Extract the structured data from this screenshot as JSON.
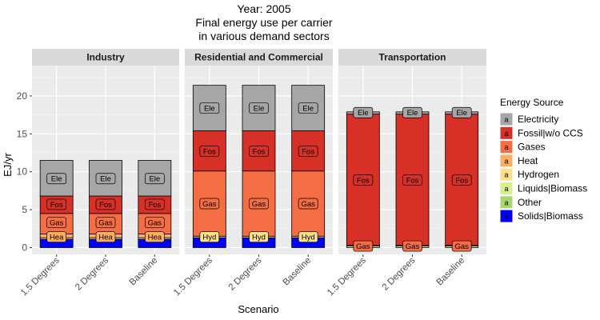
{
  "chart_data": {
    "type": "bar",
    "stacked": true,
    "title_lines": [
      "Year: 2005",
      "Final energy use per carrier",
      "in various demand sectors"
    ],
    "xlabel": "Scenario",
    "ylabel": "EJ/yr",
    "ylim": [
      -0.9,
      24
    ],
    "yticks": [
      0,
      5,
      10,
      15,
      20
    ],
    "grid": true,
    "legend_position": "right",
    "legend_title": "Energy Source",
    "categories": [
      "1.5 Degrees",
      "2 Degrees",
      "Baseline"
    ],
    "carriers": [
      {
        "name": "Electricity",
        "color": "#a6a6a6"
      },
      {
        "name": "Fossil|w/o CCS",
        "color": "#d73027"
      },
      {
        "name": "Gases",
        "color": "#f46d43"
      },
      {
        "name": "Heat",
        "color": "#fdae61"
      },
      {
        "name": "Hydrogen",
        "color": "#fee08b"
      },
      {
        "name": "Liquids|Biomass",
        "color": "#d9ef8b"
      },
      {
        "name": "Other",
        "color": "#a6d96a"
      },
      {
        "name": "Solids|Biomass",
        "color": "#0000ff"
      }
    ],
    "stack_order_bottom_to_top": [
      "Solids|Biomass",
      "Other",
      "Liquids|Biomass",
      "Hydrogen",
      "Heat",
      "Gases",
      "Fossil|w/o CCS",
      "Electricity"
    ],
    "facets": [
      {
        "name": "Industry",
        "series": [
          {
            "name": "Solids|Biomass",
            "values": [
              1.1,
              1.1,
              1.1
            ]
          },
          {
            "name": "Other",
            "values": [
              0,
              0,
              0
            ]
          },
          {
            "name": "Liquids|Biomass",
            "values": [
              0,
              0,
              0
            ]
          },
          {
            "name": "Hydrogen",
            "values": [
              0.2,
              0.2,
              0.2
            ]
          },
          {
            "name": "Heat",
            "values": [
              0.5,
              0.5,
              0.5
            ]
          },
          {
            "name": "Gases",
            "values": [
              2.7,
              2.7,
              2.7
            ]
          },
          {
            "name": "Fossil|w/o CCS",
            "values": [
              2.3,
              2.3,
              2.3
            ]
          },
          {
            "name": "Electricity",
            "values": [
              4.7,
              4.7,
              4.7
            ]
          }
        ],
        "labels": [
          {
            "text": "Hea",
            "carrier": "Heat",
            "y": 1.4
          },
          {
            "text": "Gas",
            "carrier": "Gases",
            "y": 3.3
          },
          {
            "text": "Fos",
            "carrier": "Fossil|w/o CCS",
            "y": 5.7
          },
          {
            "text": "Ele",
            "carrier": "Electricity",
            "y": 9.1
          }
        ]
      },
      {
        "name": "Residential and Commercial",
        "series": [
          {
            "name": "Solids|Biomass",
            "values": [
              1.3,
              1.3,
              1.3
            ]
          },
          {
            "name": "Other",
            "values": [
              0,
              0,
              0
            ]
          },
          {
            "name": "Liquids|Biomass",
            "values": [
              0,
              0,
              0
            ]
          },
          {
            "name": "Hydrogen",
            "values": [
              0.2,
              0.2,
              0.2
            ]
          },
          {
            "name": "Heat",
            "values": [
              0,
              0,
              0
            ]
          },
          {
            "name": "Gases",
            "values": [
              8.6,
              8.6,
              8.6
            ]
          },
          {
            "name": "Fossil|w/o CCS",
            "values": [
              5.3,
              5.3,
              5.3
            ]
          },
          {
            "name": "Electricity",
            "values": [
              6.0,
              6.0,
              6.0
            ]
          }
        ],
        "labels": [
          {
            "text": "Hyd",
            "carrier": "Hydrogen",
            "y": 1.4
          },
          {
            "text": "Gas",
            "carrier": "Gases",
            "y": 5.8
          },
          {
            "text": "Fos",
            "carrier": "Fossil|w/o CCS",
            "y": 12.7
          },
          {
            "text": "Ele",
            "carrier": "Electricity",
            "y": 18.4
          }
        ]
      },
      {
        "name": "Transportation",
        "series": [
          {
            "name": "Solids|Biomass",
            "values": [
              0,
              0,
              0
            ]
          },
          {
            "name": "Other",
            "values": [
              0,
              0,
              0
            ]
          },
          {
            "name": "Liquids|Biomass",
            "values": [
              0.2,
              0.2,
              0.2
            ]
          },
          {
            "name": "Hydrogen",
            "values": [
              0,
              0,
              0
            ]
          },
          {
            "name": "Heat",
            "values": [
              0,
              0,
              0
            ]
          },
          {
            "name": "Gases",
            "values": [
              0.1,
              0.1,
              0.1
            ]
          },
          {
            "name": "Fossil|w/o CCS",
            "values": [
              17.3,
              17.3,
              17.3
            ]
          },
          {
            "name": "Electricity",
            "values": [
              0.3,
              0.3,
              0.3
            ]
          }
        ],
        "labels": [
          {
            "text": "Gas",
            "carrier": "Gases",
            "y": 0.2
          },
          {
            "text": "Fos",
            "carrier": "Fossil|w/o CCS",
            "y": 8.9
          },
          {
            "text": "Ele",
            "carrier": "Electricity",
            "y": 17.8
          }
        ]
      }
    ]
  }
}
